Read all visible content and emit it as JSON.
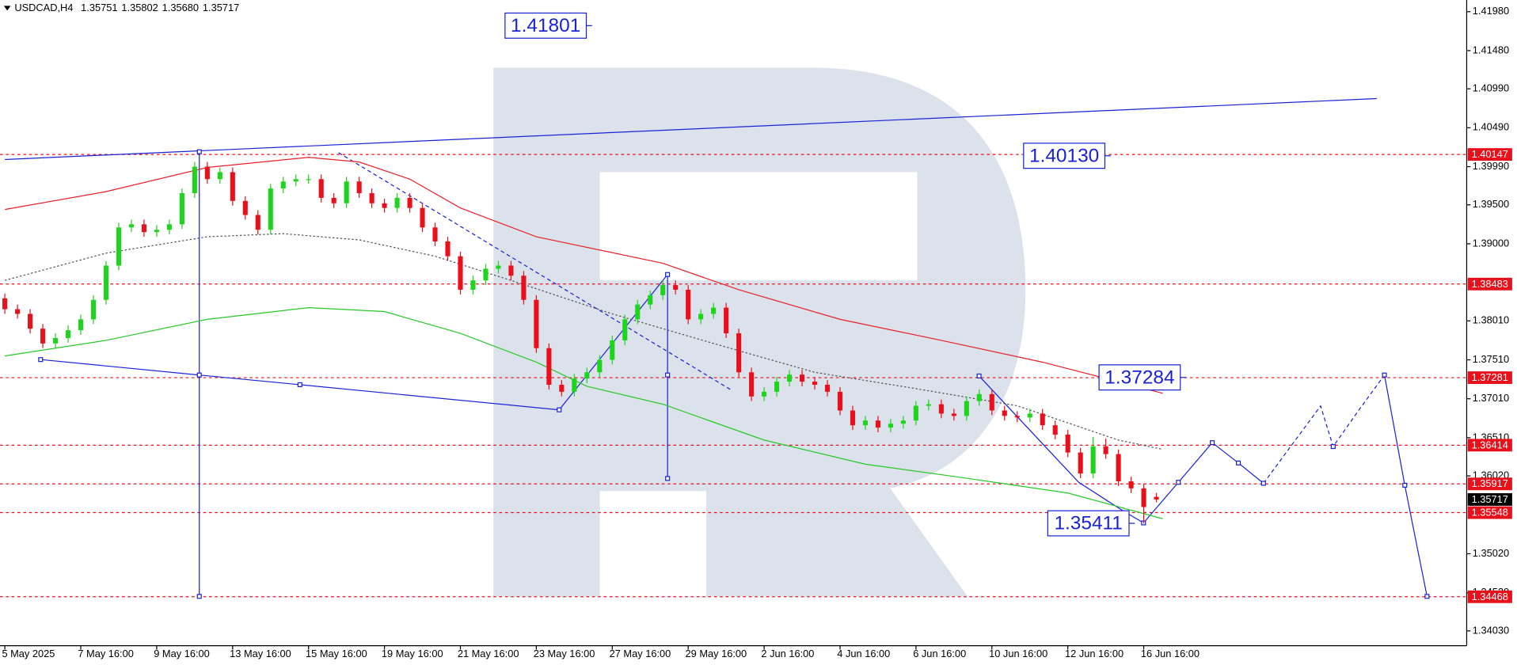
{
  "chart_data": {
    "type": "candlestick",
    "header": {
      "symbol": "USDCAD,H4",
      "open": "1.35751",
      "high": "1.35802",
      "low": "1.35680",
      "close": "1.35717"
    },
    "categories": [
      "5 May 2025",
      null,
      null,
      null,
      null,
      null,
      "7 May 16:00",
      null,
      null,
      null,
      null,
      null,
      "9 May 16:00",
      null,
      null,
      null,
      null,
      null,
      "13 May 16:00",
      null,
      null,
      null,
      null,
      null,
      "15 May 16:00",
      null,
      null,
      null,
      null,
      null,
      "19 May 16:00",
      null,
      null,
      null,
      null,
      null,
      "21 May 16:00",
      null,
      null,
      null,
      null,
      null,
      "23 May 16:00",
      null,
      null,
      null,
      null,
      null,
      "27 May 16:00",
      null,
      null,
      null,
      null,
      null,
      "29 May 16:00",
      null,
      null,
      null,
      null,
      null,
      "2 Jun 16:00",
      null,
      null,
      null,
      null,
      null,
      "4 Jun 16:00",
      null,
      null,
      null,
      null,
      null,
      "6 Jun 16:00",
      null,
      null,
      null,
      null,
      null,
      "10 Jun 16:00",
      null,
      null,
      null,
      null,
      null,
      "12 Jun 16:00",
      null,
      null,
      null,
      null,
      null,
      "16 Jun 16:00",
      null
    ],
    "ohlc": [
      [
        1.383,
        1.3836,
        1.381,
        1.3816
      ],
      [
        1.3816,
        1.3822,
        1.3804,
        1.381
      ],
      [
        1.381,
        1.3816,
        1.3785,
        1.3791
      ],
      [
        1.3791,
        1.3797,
        1.3766,
        1.3772
      ],
      [
        1.3772,
        1.3785,
        1.3766,
        1.3779
      ],
      [
        1.3779,
        1.3795,
        1.3773,
        1.3789
      ],
      [
        1.3789,
        1.3809,
        1.3783,
        1.3803
      ],
      [
        1.3803,
        1.3834,
        1.3797,
        1.3828
      ],
      [
        1.3828,
        1.3878,
        1.3822,
        1.3872
      ],
      [
        1.3872,
        1.3927,
        1.3866,
        1.3921
      ],
      [
        1.3921,
        1.3931,
        1.3915,
        1.3925
      ],
      [
        1.3925,
        1.3931,
        1.3909,
        1.3915
      ],
      [
        1.3915,
        1.3924,
        1.3909,
        1.3918
      ],
      [
        1.3918,
        1.3931,
        1.3912,
        1.3925
      ],
      [
        1.3925,
        1.3971,
        1.3919,
        1.3965
      ],
      [
        1.3965,
        1.4005,
        1.3959,
        1.3999
      ],
      [
        1.3999,
        1.4005,
        1.3977,
        1.3983
      ],
      [
        1.3983,
        1.3998,
        1.3977,
        1.3992
      ],
      [
        1.3992,
        1.3998,
        1.3949,
        1.3955
      ],
      [
        1.3955,
        1.3961,
        1.3931,
        1.3937
      ],
      [
        1.3937,
        1.3943,
        1.3912,
        1.3918
      ],
      [
        1.3918,
        1.3977,
        1.3912,
        1.3971
      ],
      [
        1.3971,
        1.3986,
        1.3965,
        1.398
      ],
      [
        1.398,
        1.3989,
        1.3974,
        1.3983
      ],
      [
        1.3983,
        1.3989,
        1.3977,
        1.3983
      ],
      [
        1.3983,
        1.3989,
        1.3953,
        1.3959
      ],
      [
        1.3959,
        1.3965,
        1.3946,
        1.3952
      ],
      [
        1.3952,
        1.3986,
        1.3946,
        1.398
      ],
      [
        1.398,
        1.3986,
        1.3959,
        1.3965
      ],
      [
        1.3965,
        1.3971,
        1.3946,
        1.3952
      ],
      [
        1.3952,
        1.3958,
        1.394,
        1.3946
      ],
      [
        1.3946,
        1.3965,
        1.394,
        1.3959
      ],
      [
        1.3959,
        1.3965,
        1.394,
        1.3946
      ],
      [
        1.3946,
        1.3952,
        1.3915,
        1.3921
      ],
      [
        1.3921,
        1.3927,
        1.3897,
        1.3903
      ],
      [
        1.3903,
        1.3909,
        1.3878,
        1.3884
      ],
      [
        1.3884,
        1.389,
        1.3835,
        1.3841
      ],
      [
        1.3841,
        1.3859,
        1.3835,
        1.3853
      ],
      [
        1.3853,
        1.3874,
        1.3847,
        1.3868
      ],
      [
        1.3868,
        1.3878,
        1.3862,
        1.3872
      ],
      [
        1.3872,
        1.3878,
        1.3853,
        1.3859
      ],
      [
        1.3859,
        1.3865,
        1.3822,
        1.3828
      ],
      [
        1.3828,
        1.3834,
        1.376,
        1.3766
      ],
      [
        1.3766,
        1.3772,
        1.3713,
        1.3719
      ],
      [
        1.3719,
        1.3725,
        1.3704,
        1.371
      ],
      [
        1.371,
        1.3733,
        1.3704,
        1.3727
      ],
      [
        1.3727,
        1.3741,
        1.3721,
        1.3735
      ],
      [
        1.3735,
        1.3757,
        1.3729,
        1.3751
      ],
      [
        1.3751,
        1.3782,
        1.3745,
        1.3776
      ],
      [
        1.3776,
        1.3809,
        1.377,
        1.3803
      ],
      [
        1.3803,
        1.3828,
        1.3797,
        1.3822
      ],
      [
        1.3822,
        1.384,
        1.3816,
        1.3834
      ],
      [
        1.3834,
        1.3853,
        1.3828,
        1.3847
      ],
      [
        1.3847,
        1.3853,
        1.3835,
        1.3841
      ],
      [
        1.3841,
        1.3847,
        1.3797,
        1.3803
      ],
      [
        1.3803,
        1.3816,
        1.3797,
        1.381
      ],
      [
        1.381,
        1.3824,
        1.3804,
        1.3818
      ],
      [
        1.3818,
        1.3824,
        1.3779,
        1.3785
      ],
      [
        1.3785,
        1.3791,
        1.3729,
        1.3735
      ],
      [
        1.3735,
        1.3741,
        1.3698,
        1.3704
      ],
      [
        1.3704,
        1.3716,
        1.3698,
        1.371
      ],
      [
        1.371,
        1.3729,
        1.3704,
        1.3723
      ],
      [
        1.3723,
        1.3738,
        1.3717,
        1.3732
      ],
      [
        1.3732,
        1.3738,
        1.3717,
        1.3723
      ],
      [
        1.3723,
        1.3729,
        1.3713,
        1.3719
      ],
      [
        1.3719,
        1.3725,
        1.3704,
        1.371
      ],
      [
        1.371,
        1.3716,
        1.368,
        1.3686
      ],
      [
        1.3686,
        1.3692,
        1.3661,
        1.3667
      ],
      [
        1.3667,
        1.3679,
        1.3661,
        1.3673
      ],
      [
        1.3673,
        1.3679,
        1.3658,
        1.3664
      ],
      [
        1.3664,
        1.3675,
        1.3658,
        1.3669
      ],
      [
        1.3669,
        1.3679,
        1.3663,
        1.3673
      ],
      [
        1.3673,
        1.3698,
        1.3667,
        1.3692
      ],
      [
        1.3692,
        1.37,
        1.3686,
        1.3694
      ],
      [
        1.3694,
        1.37,
        1.3676,
        1.3682
      ],
      [
        1.3682,
        1.3688,
        1.3673,
        1.3679
      ],
      [
        1.3679,
        1.3704,
        1.3673,
        1.3698
      ],
      [
        1.3698,
        1.3713,
        1.3692,
        1.3707
      ],
      [
        1.3707,
        1.3713,
        1.368,
        1.3686
      ],
      [
        1.3686,
        1.3692,
        1.3673,
        1.3679
      ],
      [
        1.3679,
        1.3685,
        1.3671,
        1.3677
      ],
      [
        1.3677,
        1.3688,
        1.3671,
        1.3682
      ],
      [
        1.3682,
        1.3688,
        1.3661,
        1.3667
      ],
      [
        1.3667,
        1.3673,
        1.3649,
        1.3655
      ],
      [
        1.3655,
        1.3661,
        1.3626,
        1.3632
      ],
      [
        1.3632,
        1.3638,
        1.3599,
        1.3605
      ],
      [
        1.3605,
        1.3652,
        1.3599,
        1.364
      ],
      [
        1.364,
        1.365,
        1.3624,
        1.363
      ],
      [
        1.363,
        1.3636,
        1.3589,
        1.3595
      ],
      [
        1.3595,
        1.3601,
        1.358,
        1.3586
      ],
      [
        1.3586,
        1.3592,
        1.3541,
        1.3562
      ],
      [
        1.35751,
        1.35802,
        1.3568,
        1.35717
      ]
    ],
    "bull_color": "#1fd31f",
    "bear_color": "#e8101a",
    "series": [
      {
        "color": "#e8202a",
        "dash": false,
        "x": [
          0,
          8,
          16,
          24,
          28,
          32,
          36,
          42,
          52,
          58,
          66,
          74,
          82,
          88,
          91.5
        ],
        "values": [
          1.3944,
          1.3967,
          1.3998,
          1.4011,
          1.4005,
          1.3983,
          1.3946,
          1.3909,
          1.3875,
          1.3841,
          1.3803,
          1.3776,
          1.3748,
          1.3723,
          1.3708
        ]
      },
      {
        "color": "#28c828",
        "dash": false,
        "x": [
          0,
          8,
          16,
          24,
          30,
          36,
          42,
          46,
          52,
          60,
          68,
          76,
          84,
          91.5
        ],
        "values": [
          1.3756,
          1.3776,
          1.3803,
          1.3818,
          1.3813,
          1.3785,
          1.3748,
          1.3717,
          1.3694,
          1.3648,
          1.3617,
          1.3599,
          1.358,
          1.3547
        ]
      },
      {
        "color": "#555555",
        "dash": true,
        "x": [
          0,
          8,
          16,
          22,
          28,
          34,
          40,
          48,
          56,
          64,
          72,
          80,
          88,
          91.5
        ],
        "values": [
          1.3853,
          1.3888,
          1.3909,
          1.3913,
          1.3905,
          1.3884,
          1.3853,
          1.381,
          1.3772,
          1.3735,
          1.3714,
          1.3692,
          1.3648,
          1.3636
        ]
      }
    ],
    "ylim": [
      1.3384,
      1.4213
    ],
    "yticks": [
      {
        "value": 1.4198,
        "label": "1.41980"
      },
      {
        "value": 1.4148,
        "label": "1.41480"
      },
      {
        "value": 1.4099,
        "label": "1.40990"
      },
      {
        "value": 1.4049,
        "label": "1.40490"
      },
      {
        "value": 1.3999,
        "label": "1.39990"
      },
      {
        "value": 1.395,
        "label": "1.39500"
      },
      {
        "value": 1.39,
        "label": "1.39000"
      },
      {
        "value": 1.3801,
        "label": "1.38010"
      },
      {
        "value": 1.3751,
        "label": "1.37510"
      },
      {
        "value": 1.3701,
        "label": "1.37010"
      },
      {
        "value": 1.3651,
        "label": "1.36510"
      },
      {
        "value": 1.3602,
        "label": "1.36020"
      },
      {
        "value": 1.3502,
        "label": "1.35020"
      },
      {
        "value": 1.3452,
        "label": "1.34520"
      },
      {
        "value": 1.3403,
        "label": "1.34030"
      }
    ],
    "levels": [
      1.40147,
      1.38483,
      1.37281,
      1.36414,
      1.35917,
      1.35548,
      1.34468
    ],
    "level_color": "#e8101a",
    "annotations": [
      1.41801,
      {
        "value": 1.4013,
        "label": "1.40130"
      },
      1.37284,
      1.35411
    ],
    "annotation_color": "#1a22d6"
  }
}
